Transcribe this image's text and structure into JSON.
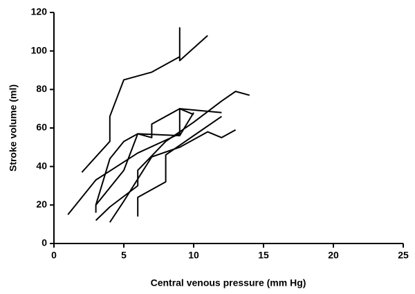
{
  "chart_data": {
    "type": "line",
    "x_label": "Central venous pressure (mm Hg)",
    "y_label": "Stroke volume (ml)",
    "xlim": [
      0,
      25
    ],
    "xticks": [
      0,
      5,
      10,
      15,
      20,
      25
    ],
    "ylim": [
      0,
      120
    ],
    "yticks": [
      0,
      20,
      40,
      60,
      80,
      100,
      120
    ],
    "grid": false,
    "series": [
      {
        "color": "#000000",
        "x": [
          2,
          4,
          4,
          5,
          7,
          9,
          9,
          9,
          11
        ],
        "values": [
          37,
          53,
          66,
          85,
          89,
          97,
          112,
          95,
          108
        ]
      },
      {
        "color": "#000000",
        "x": [
          1,
          3,
          6,
          9,
          9,
          12
        ],
        "values": [
          15,
          33,
          47,
          57,
          70,
          68
        ]
      },
      {
        "color": "#000000",
        "x": [
          3,
          3,
          5,
          6,
          7,
          7,
          9,
          10
        ],
        "values": [
          16,
          20,
          38,
          57,
          55,
          62,
          70,
          67
        ]
      },
      {
        "color": "#000000",
        "x": [
          3,
          4,
          6,
          6,
          8,
          10,
          12,
          13,
          14
        ],
        "values": [
          12,
          19,
          30,
          38,
          53,
          63,
          74,
          79,
          77
        ]
      },
      {
        "color": "#000000",
        "x": [
          4,
          5,
          7,
          9,
          11,
          12,
          13
        ],
        "values": [
          11,
          22,
          45,
          50,
          58,
          55,
          59
        ]
      },
      {
        "color": "#000000",
        "x": [
          6,
          6,
          8,
          8,
          10,
          12
        ],
        "values": [
          14,
          24,
          32,
          46,
          56,
          66
        ]
      },
      {
        "color": "#000000",
        "x": [
          3,
          4,
          5,
          6,
          9,
          10
        ],
        "values": [
          20,
          44,
          53,
          57,
          56,
          68
        ]
      }
    ]
  }
}
